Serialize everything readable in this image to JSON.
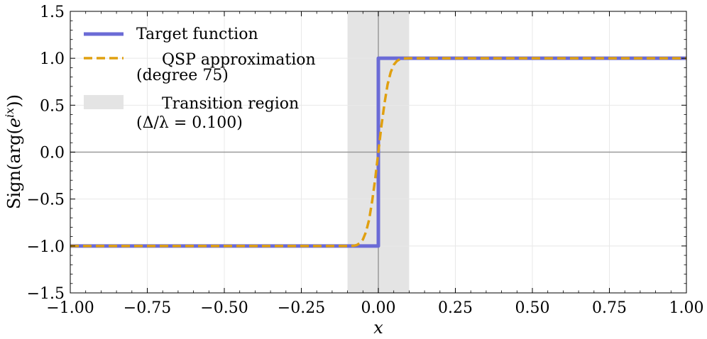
{
  "chart_data": {
    "type": "line",
    "title": "",
    "xlabel": "x",
    "ylabel": {
      "prefix": "Sign(arg(",
      "base": "e",
      "exponent": "ix",
      "suffix": "))"
    },
    "xlim": [
      -1.0,
      1.0
    ],
    "ylim": [
      -1.5,
      1.5
    ],
    "x_ticks": [
      -1.0,
      -0.75,
      -0.5,
      -0.25,
      0.0,
      0.25,
      0.5,
      0.75,
      1.0
    ],
    "x_tick_labels": [
      "−1.00",
      "−0.75",
      "−0.50",
      "−0.25",
      "0.00",
      "0.25",
      "0.50",
      "0.75",
      "1.00"
    ],
    "y_ticks": [
      -1.5,
      -1.0,
      -0.5,
      0.0,
      0.5,
      1.0,
      1.5
    ],
    "y_tick_labels": [
      "−1.5",
      "−1.0",
      "−0.5",
      "0.0",
      "0.5",
      "1.0",
      "1.5"
    ],
    "grid": true,
    "reference_lines": {
      "horizontal": 0.0,
      "vertical": 0.0
    },
    "shaded_region": {
      "name": "Transition region",
      "x_range": [
        -0.1,
        0.1
      ],
      "color": "#e4e4e4"
    },
    "series": [
      {
        "name": "Target function",
        "style": "solid",
        "color": "#6b6bd6",
        "points": [
          [
            -1.0,
            -1.0
          ],
          [
            0.0,
            -1.0
          ],
          [
            0.0,
            1.0
          ],
          [
            1.0,
            1.0
          ]
        ]
      },
      {
        "name": "QSP approximation",
        "style": "dashed",
        "color": "#e0a010",
        "points": [
          [
            -1.0,
            -1.0
          ],
          [
            -0.1,
            -1.0
          ],
          [
            -0.08,
            -0.998
          ],
          [
            -0.07,
            -0.99
          ],
          [
            -0.06,
            -0.97
          ],
          [
            -0.05,
            -0.93
          ],
          [
            -0.04,
            -0.85
          ],
          [
            -0.03,
            -0.72
          ],
          [
            -0.02,
            -0.52
          ],
          [
            -0.01,
            -0.28
          ],
          [
            0.0,
            0.0
          ],
          [
            0.01,
            0.28
          ],
          [
            0.02,
            0.52
          ],
          [
            0.03,
            0.72
          ],
          [
            0.04,
            0.85
          ],
          [
            0.05,
            0.93
          ],
          [
            0.06,
            0.97
          ],
          [
            0.07,
            0.99
          ],
          [
            0.08,
            0.998
          ],
          [
            0.1,
            1.0
          ],
          [
            1.0,
            1.0
          ]
        ]
      }
    ],
    "legend": {
      "position": "top-left",
      "entries": [
        {
          "line1": "Target function",
          "line2": ""
        },
        {
          "line1": "QSP approximation",
          "line2": "(degree 75)"
        },
        {
          "line1": "Transition region",
          "line2": "(Δ/λ = 0.100)"
        }
      ]
    }
  }
}
